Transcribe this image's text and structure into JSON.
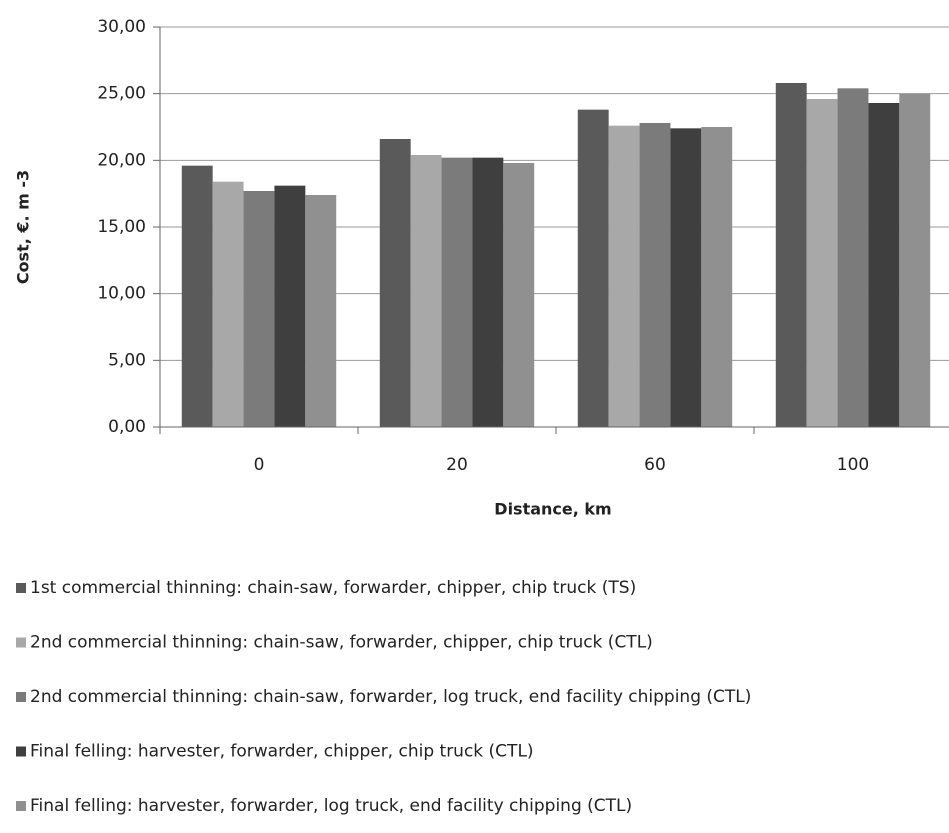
{
  "chart_data": {
    "type": "bar",
    "y_label": "Cost, €. m -3",
    "x_label": "Distance, km",
    "categories": [
      "0",
      "20",
      "60",
      "100"
    ],
    "series": [
      {
        "name": "1st commercial thinning: chain-saw, forwarder, chipper, chip truck (TS)",
        "color": "#5a5a5a",
        "values": [
          19.6,
          21.6,
          23.8,
          25.8
        ]
      },
      {
        "name": "2nd commercial thinning: chain-saw, forwarder, chipper, chip truck (CTL)",
        "color": "#a8a8a8",
        "values": [
          18.4,
          20.4,
          22.6,
          24.6
        ]
      },
      {
        "name": "2nd commercial thinning: chain-saw, forwarder, log truck, end facility chipping (CTL)",
        "color": "#7b7b7b",
        "values": [
          17.7,
          20.2,
          22.8,
          25.4
        ]
      },
      {
        "name": "Final felling: harvester, forwarder, chipper, chip truck (CTL)",
        "color": "#3f3f3f",
        "values": [
          18.1,
          20.2,
          22.4,
          24.3
        ]
      },
      {
        "name": "Final felling: harvester, forwarder,  log truck, end facility chipping (CTL)",
        "color": "#909090",
        "values": [
          17.4,
          19.8,
          22.5,
          25.0
        ]
      }
    ],
    "ylim": [
      0,
      30
    ],
    "yticks": [
      {
        "value": 0,
        "label": "0,00"
      },
      {
        "value": 5,
        "label": "5,00"
      },
      {
        "value": 10,
        "label": "10,00"
      },
      {
        "value": 15,
        "label": "15,00"
      },
      {
        "value": 20,
        "label": "20,00"
      },
      {
        "value": 25,
        "label": "25,00"
      },
      {
        "value": 30,
        "label": "30,00"
      }
    ],
    "grid": true
  }
}
